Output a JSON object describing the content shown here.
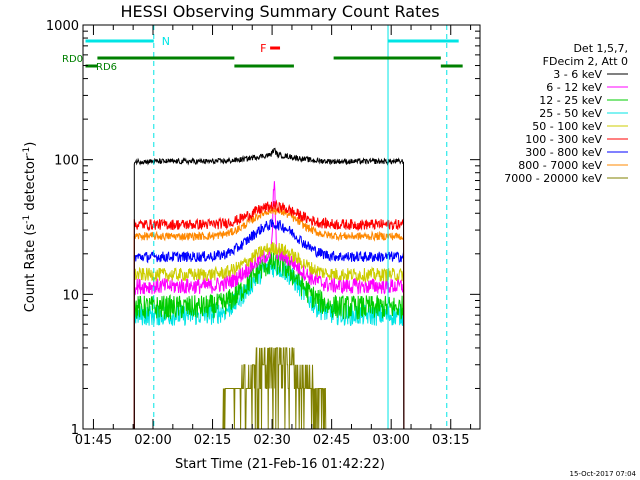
{
  "chart_data": {
    "type": "line",
    "title": "HESSI Observing Summary Count Rates",
    "ylabel_main": "Count Rate (s",
    "ylabel_sup1": "-1",
    "ylabel_mid": " detector",
    "ylabel_sup2": "-1",
    "ylabel_end": ")",
    "xlabel": "Start Time (21-Feb-16 01:42:22)",
    "y_scale": "log",
    "ylim": [
      1,
      1000
    ],
    "xlim_minutes": [
      102.37,
      202.37
    ],
    "y_ticks": [
      {
        "value": 1,
        "label": "1"
      },
      {
        "value": 10,
        "label": "10"
      },
      {
        "value": 100,
        "label": "100"
      },
      {
        "value": 1000,
        "label": "1000"
      }
    ],
    "x_ticks": [
      {
        "value": 105,
        "label": "01:45"
      },
      {
        "value": 120,
        "label": "02:00"
      },
      {
        "value": 135,
        "label": "02:15"
      },
      {
        "value": 150,
        "label": "02:30"
      },
      {
        "value": 165,
        "label": "02:45"
      },
      {
        "value": 180,
        "label": "03:00"
      },
      {
        "value": 195,
        "label": "03:15"
      }
    ],
    "legend_header": [
      "Det 1,5,7,",
      "FDecim 2, Att 0"
    ],
    "legend_placement": "right, outside plot",
    "data_start": 115.3,
    "data_end": 183.2,
    "peak_time": 150.5,
    "series": [
      {
        "name": "3 - 6 keV",
        "color": "#000000",
        "baseline": 97,
        "peak": 108,
        "noise": 0.02
      },
      {
        "name": "6 - 12 keV",
        "color": "#ff00ff",
        "baseline": 11.5,
        "peak": 20,
        "noise": 0.06
      },
      {
        "name": "12 - 25 keV",
        "color": "#00cc00",
        "baseline": 8,
        "peak": 17,
        "noise": 0.09
      },
      {
        "name": "25 - 50 keV",
        "color": "#00e5e5",
        "baseline": 7,
        "peak": 16,
        "noise": 0.08
      },
      {
        "name": "50 - 100 keV",
        "color": "#cccc00",
        "baseline": 14,
        "peak": 22,
        "noise": 0.05
      },
      {
        "name": "100 - 300 keV",
        "color": "#ff0000",
        "baseline": 33,
        "peak": 45,
        "noise": 0.04
      },
      {
        "name": "300 - 800 keV",
        "color": "#0000ff",
        "baseline": 19,
        "peak": 33,
        "noise": 0.04
      },
      {
        "name": "800 - 7000 keV",
        "color": "#ff8800",
        "baseline": 27,
        "peak": 42,
        "noise": 0.03
      },
      {
        "name": "7000 - 20000 keV",
        "color": "#808000",
        "baseline": 1.5,
        "peak": 3.2,
        "noise": 0.25
      }
    ],
    "annotations": {
      "night_label": "N",
      "night_color": "#00e5e5",
      "night_intervals": [
        [
          103.0,
          120.2
        ],
        [
          179.2,
          197.0
        ]
      ],
      "night_dashed_lines": [
        120.2,
        194.0
      ],
      "night_solid_lines": [
        179.2
      ],
      "flare_label": "F",
      "flare_color": "#ff0000",
      "flare_interval": [
        149.5,
        152.0
      ],
      "saa_color": "#008000",
      "rd0_label": "RD0",
      "rd0_intervals": [
        [
          106.0,
          140.5
        ],
        [
          165.5,
          192.5
        ]
      ],
      "rd6_label": "RD6",
      "rd6_intervals": [
        [
          103.0,
          106.0
        ],
        [
          140.5,
          155.5
        ],
        [
          192.5,
          198.0
        ]
      ]
    }
  },
  "footer_timestamp": "15-Oct-2017 07:04"
}
